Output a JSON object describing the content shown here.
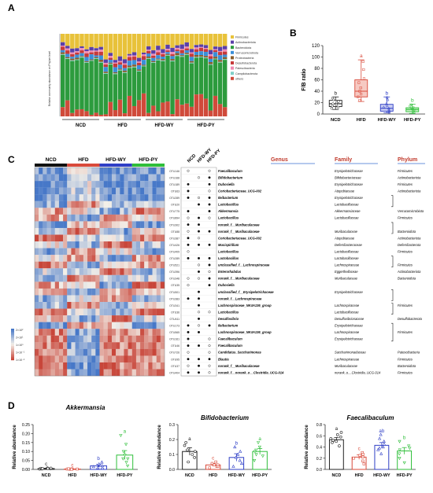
{
  "panels": {
    "A": "A",
    "B": "B",
    "C": "C",
    "D": "D"
  },
  "colors": {
    "NCD": "#222222",
    "HFD": "#d94a3a",
    "HFD-WY": "#2f3fc6",
    "HFD-PY": "#2fbf3a",
    "heat_high": "#4a78c8",
    "heat_mid": "#f3efe8",
    "heat_low": "#c94a3a"
  },
  "panelA": {
    "ylabel": "Relative community abundance on Phylum level",
    "legend": [
      "Firmicutes",
      "Actinobacteriota",
      "Bacteroidota",
      "Verrucomicrobiota",
      "Proteobacteria",
      "Desulfobacterota",
      "Patescibacteria",
      "Campilobacterota",
      "others"
    ],
    "legend_colors": [
      "#e8c23a",
      "#5a3fa8",
      "#2c9b3d",
      "#3a8fd8",
      "#8a5c2a",
      "#c63a3a",
      "#f08ab2",
      "#7fd0c8",
      "#d04a3a"
    ]
  },
  "heatmap": {
    "groups": [
      "NCD",
      "HFD",
      "HFD-WY",
      "HFD-PY"
    ],
    "dot_columns": [
      "NCD",
      "HFD-WY",
      "HFD-PY"
    ],
    "col_headers": {
      "genus": "Genus",
      "family": "Family",
      "phylum": "Phylum"
    },
    "colorbar": [
      "2×10²",
      "2×10¹",
      "1×10⁰",
      "1×10⁻¹",
      "1×10⁻²"
    ],
    "rows": [
      {
        "otu": "OTU146",
        "genus": "Faecalibaculum",
        "family": "Erysipelotrichaceae",
        "phylum": "Firmicutes"
      },
      {
        "otu": "OTU168",
        "genus": "Bifidobacterium",
        "family": "Bifidobacteriaceae",
        "phylum": "Actinobacteriota"
      },
      {
        "otu": "OTU189",
        "genus": "Dubosiella",
        "family": "Erysipelotrichaceae",
        "phylum": "Firmicutes"
      },
      {
        "otu": "OTU63",
        "genus": "Coriobacteriaceae_UCG-002",
        "family": "Atopobiaceae",
        "phylum": "Actinobacteriota"
      },
      {
        "otu": "OTU289",
        "genus": "Ileibacterium",
        "family": "Erysipelotrichaceae",
        "phylum": ""
      },
      {
        "otu": "OTU20",
        "genus": "Lactobacillus",
        "family": "Lactobacillaceae",
        "phylum": ""
      },
      {
        "otu": "OTU775",
        "genus": "Akkermansia",
        "family": "Akkermansiaceae",
        "phylum": "Verrucomicrobiota"
      },
      {
        "otu": "OTU894",
        "genus": "Lactobacillus",
        "family": "Lactobacillaceae",
        "phylum": "Firmicutes"
      },
      {
        "otu": "OTU302",
        "genus": "norank_f__Muribaculaceae",
        "family": "",
        "phylum": ""
      },
      {
        "otu": "OTU88",
        "genus": "norank_f__Muribaculaceae",
        "family": "Muribaculaceae",
        "phylum": "Bacteroidota"
      },
      {
        "otu": "OTU387",
        "genus": "Coriobacteriaceae_UCG-002",
        "family": "Atopobiaceae",
        "phylum": "Actinobacteriota"
      },
      {
        "otu": "OTU426",
        "genus": "Mucispirillum",
        "family": "Deferribacteraceae",
        "phylum": "Deferribacterota"
      },
      {
        "otu": "OTU409",
        "genus": "Lactobacillus",
        "family": "Lactobacillaceae",
        "phylum": "Firmicutes"
      },
      {
        "otu": "OTU289",
        "genus": "Lactobacillus",
        "family": "Lactobacillaceae",
        "phylum": ""
      },
      {
        "otu": "OTU521",
        "genus": "unclassified_f__Lachnospiraceae",
        "family": "Lachnospiraceae",
        "phylum": "Firmicutes"
      },
      {
        "otu": "OTU396",
        "genus": "Enterorhabdus",
        "family": "Eggerthellaceae",
        "phylum": "Actinobacteriota"
      },
      {
        "otu": "OTU348",
        "genus": "norank_f__Muribaculaceae",
        "family": "Muribaculaceae",
        "phylum": "Bacteroidota"
      },
      {
        "otu": "OTU35",
        "genus": "Dubosiella",
        "family": "",
        "phylum": ""
      },
      {
        "otu": "OTU501",
        "genus": "unclassified_f__Erysipelotrichaceae",
        "family": "Erysipelotrichaceae",
        "phylum": ""
      },
      {
        "otu": "OTU383",
        "genus": "norank_f__Lachnospiraceae",
        "family": "",
        "phylum": ""
      },
      {
        "otu": "OTU341",
        "genus": "Lachnospiraceae_NK4A136_group",
        "family": "Lachnospiraceae",
        "phylum": "Firmicutes"
      },
      {
        "otu": "OTU36",
        "genus": "Lactobacillus",
        "family": "Lactobacillaceae",
        "phylum": ""
      },
      {
        "otu": "OTU411",
        "genus": "Desulfovibrio",
        "family": "Desulfovibrionaceae",
        "phylum": "Desulfobacterota"
      },
      {
        "otu": "OTU173",
        "genus": "Ileibacterium",
        "family": "Erysipelotrichaceae",
        "phylum": ""
      },
      {
        "otu": "OTU565",
        "genus": "Lachnospiraceae_NK4A136_group",
        "family": "Lachnospiraceae",
        "phylum": "Firmicutes"
      },
      {
        "otu": "OTU161",
        "genus": "Faecalibaculum",
        "family": "Erysipelotrichaceae",
        "phylum": ""
      },
      {
        "otu": "OTU46",
        "genus": "Faecalibaculum",
        "family": "",
        "phylum": ""
      },
      {
        "otu": "OTU726",
        "genus": "Candidatus_Saccharimonas",
        "family": "Saccharimonadaceae",
        "phylum": "Patescibacteria"
      },
      {
        "otu": "OTU95",
        "genus": "Blautia",
        "family": "Lachnospiraceae",
        "phylum": "Firmicutes"
      },
      {
        "otu": "OTU37",
        "genus": "norank_f__Muribaculaceae",
        "family": "Muribaculaceae",
        "phylum": "Bacteroidota"
      },
      {
        "otu": "OTU404",
        "genus": "norank_f__norank_o__Clostridia_UCG-014",
        "family": "norank_o__Clostridia_UCG-014",
        "phylum": "Firmicutes"
      }
    ]
  },
  "chart_data": [
    {
      "type": "box",
      "panel": "B",
      "ylabel": "F/B ratio",
      "ylim": [
        0,
        120
      ],
      "yticks": [
        0,
        20,
        40,
        60,
        80,
        100,
        120
      ],
      "categories": [
        "NCD",
        "HFD",
        "HFD-WY",
        "HFD-PY"
      ],
      "boxes": [
        {
          "min": 8,
          "q1": 13,
          "median": 18,
          "q3": 24,
          "max": 30,
          "points": [
            10,
            12,
            14,
            16,
            18,
            20,
            22,
            25,
            28
          ],
          "letter": "b"
        },
        {
          "min": 22,
          "q1": 30,
          "median": 40,
          "q3": 60,
          "max": 95,
          "points": [
            24,
            30,
            35,
            40,
            46,
            55,
            62,
            78,
            92
          ],
          "letter": "a"
        },
        {
          "min": 2,
          "q1": 5,
          "median": 10,
          "q3": 17,
          "max": 30,
          "points": [
            3,
            5,
            7,
            10,
            12,
            15,
            18,
            25,
            29
          ],
          "letter": "b"
        },
        {
          "min": 1,
          "q1": 4,
          "median": 8,
          "q3": 11,
          "max": 17,
          "points": [
            2,
            4,
            6,
            8,
            9,
            11,
            13,
            16
          ],
          "letter": "b"
        }
      ]
    },
    {
      "type": "bar",
      "panel": "D",
      "title": "Akkermansia",
      "ylabel": "Relative abundance",
      "ylim": [
        0,
        0.25
      ],
      "yticks": [
        "0.00",
        "0.05",
        "0.10",
        "0.15",
        "0.20",
        "0.25"
      ],
      "categories": [
        "NCD",
        "HFD",
        "HFD-WY",
        "HFD-PY"
      ],
      "values": [
        0.005,
        0.002,
        0.02,
        0.08
      ],
      "errors": [
        0.002,
        0.001,
        0.008,
        0.025
      ],
      "letters": [
        "c",
        "c",
        "b",
        "a"
      ],
      "points": [
        [
          0.002,
          0.004,
          0.006,
          0.008,
          0.003,
          0.005,
          0.007,
          0.004
        ],
        [
          0.001,
          0.002,
          0.003,
          0.002,
          0.001,
          0.003,
          0.002
        ],
        [
          0.005,
          0.01,
          0.02,
          0.04,
          0.015,
          0.03,
          0.01,
          0.02
        ],
        [
          0.02,
          0.04,
          0.06,
          0.08,
          0.1,
          0.14,
          0.19,
          0.06
        ]
      ]
    },
    {
      "type": "bar",
      "panel": "D",
      "title": "Bifidobacterium",
      "ylabel": "Relative abundance",
      "ylim": [
        0,
        0.3
      ],
      "yticks": [
        "0.0",
        "0.1",
        "0.2",
        "0.3"
      ],
      "categories": [
        "NCD",
        "HFD",
        "HFD-WY",
        "HFD-PY"
      ],
      "values": [
        0.12,
        0.03,
        0.08,
        0.12
      ],
      "errors": [
        0.025,
        0.01,
        0.025,
        0.02
      ],
      "letters": [
        "a",
        "c",
        "b",
        "a"
      ],
      "points": [
        [
          0.05,
          0.08,
          0.1,
          0.13,
          0.16,
          0.18,
          0.12
        ],
        [
          0.01,
          0.02,
          0.03,
          0.04,
          0.05,
          0.02,
          0.03
        ],
        [
          0.02,
          0.04,
          0.06,
          0.1,
          0.12,
          0.15,
          0.08
        ],
        [
          0.06,
          0.09,
          0.12,
          0.15,
          0.18,
          0.1,
          0.13
        ]
      ]
    },
    {
      "type": "bar",
      "panel": "D",
      "title": "Faecalibaculum",
      "ylabel": "Relative abundance",
      "ylim": [
        0,
        0.8
      ],
      "yticks": [
        "0.0",
        "0.2",
        "0.4",
        "0.6",
        "0.8"
      ],
      "categories": [
        "NCD",
        "HFD",
        "HFD-WY",
        "HFD-PY"
      ],
      "values": [
        0.53,
        0.22,
        0.43,
        0.33
      ],
      "errors": [
        0.04,
        0.04,
        0.05,
        0.06
      ],
      "letters": [
        "a",
        "c",
        "ab",
        "b"
      ],
      "points": [
        [
          0.42,
          0.48,
          0.52,
          0.55,
          0.58,
          0.62,
          0.66,
          0.5
        ],
        [
          0.1,
          0.15,
          0.2,
          0.25,
          0.3,
          0.22,
          0.27
        ],
        [
          0.28,
          0.35,
          0.4,
          0.45,
          0.5,
          0.55,
          0.62,
          0.38
        ],
        [
          0.12,
          0.2,
          0.28,
          0.35,
          0.42,
          0.5,
          0.38
        ]
      ]
    }
  ]
}
